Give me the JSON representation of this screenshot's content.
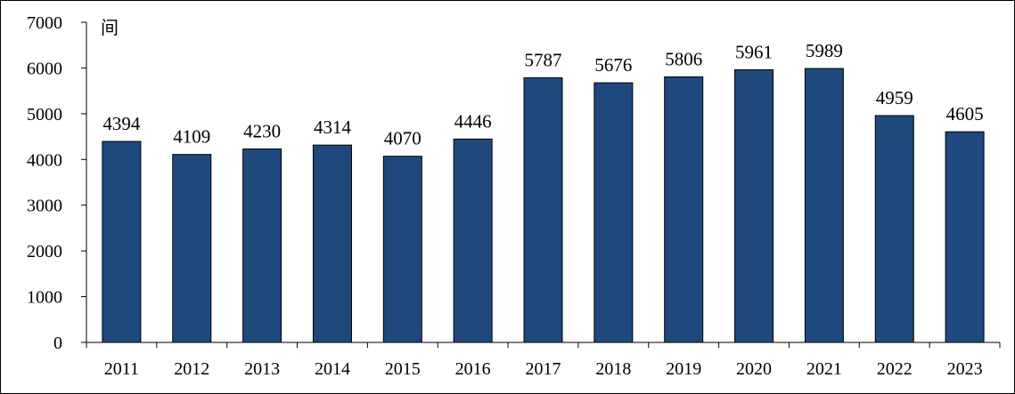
{
  "chart_data": {
    "type": "bar",
    "title": "",
    "xlabel": "",
    "ylabel": "",
    "unit": "间",
    "categories": [
      "2011",
      "2012",
      "2013",
      "2014",
      "2015",
      "2016",
      "2017",
      "2018",
      "2019",
      "2020",
      "2021",
      "2022",
      "2023"
    ],
    "values": [
      4394,
      4109,
      4230,
      4314,
      4070,
      4446,
      5787,
      5676,
      5806,
      5961,
      5989,
      4959,
      4605
    ],
    "ylim": [
      0,
      7000
    ],
    "yticks": [
      "0",
      "1000",
      "2000",
      "3000",
      "4000",
      "5000",
      "6000",
      "7000"
    ],
    "grid": false,
    "legend": "none",
    "colors": {
      "bar": "#1F497D",
      "bar_edge": "#000000",
      "axis": "#000000",
      "text": "#000000"
    }
  }
}
